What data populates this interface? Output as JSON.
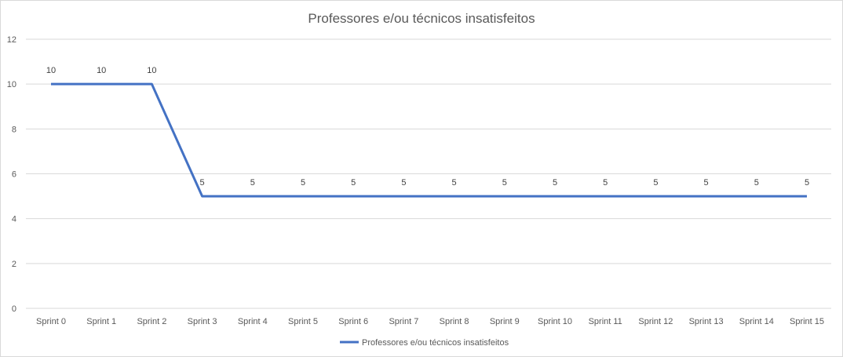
{
  "chart_data": {
    "type": "line",
    "title": "Professores e/ou técnicos insatisfeitos",
    "xlabel": "",
    "ylabel": "",
    "categories": [
      "Sprint 0",
      "Sprint 1",
      "Sprint 2",
      "Sprint 3",
      "Sprint 4",
      "Sprint 5",
      "Sprint 6",
      "Sprint 7",
      "Sprint 8",
      "Sprint 9",
      "Sprint 10",
      "Sprint 11",
      "Sprint 12",
      "Sprint 13",
      "Sprint 14",
      "Sprint 15"
    ],
    "series": [
      {
        "name": "Professores e/ou técnicos insatisfeitos",
        "values": [
          10,
          10,
          10,
          5,
          5,
          5,
          5,
          5,
          5,
          5,
          5,
          5,
          5,
          5,
          5,
          5
        ],
        "color": "#4472c4"
      }
    ],
    "ylim": [
      0,
      12
    ],
    "yticks": [
      0,
      2,
      4,
      6,
      8,
      10,
      12
    ],
    "grid": true,
    "data_labels": true,
    "legend_position": "bottom"
  }
}
